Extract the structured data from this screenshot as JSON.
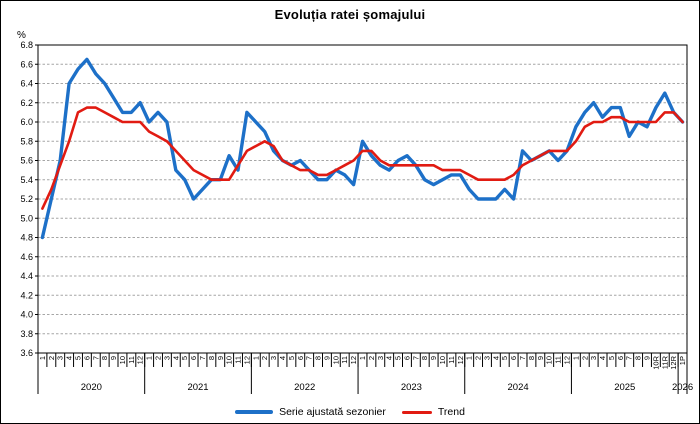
{
  "chart_data": {
    "type": "line",
    "title": "Evoluția ratei șomajului",
    "unit": "%",
    "ylim": [
      3.6,
      6.8
    ],
    "ytick_step": 0.2,
    "grid": "horizontal-dashed",
    "gridline_color": "#a6a6a6",
    "legend_position": "bottom-center",
    "years": [
      {
        "label": "2020",
        "months": [
          "1",
          "2",
          "3",
          "4",
          "5",
          "6",
          "7",
          "8",
          "9",
          "10",
          "11",
          "12"
        ]
      },
      {
        "label": "2021",
        "months": [
          "1",
          "2",
          "3",
          "4",
          "5",
          "6",
          "7",
          "8",
          "9",
          "10",
          "11",
          "12"
        ]
      },
      {
        "label": "2022",
        "months": [
          "1",
          "2",
          "3",
          "4",
          "5",
          "6",
          "7",
          "8",
          "9",
          "10",
          "11",
          "12"
        ]
      },
      {
        "label": "2023",
        "months": [
          "1",
          "2",
          "3",
          "4",
          "5",
          "6",
          "7",
          "8",
          "9",
          "10",
          "11",
          "12"
        ]
      },
      {
        "label": "2024",
        "months": [
          "1",
          "2",
          "3",
          "4",
          "5",
          "6",
          "7",
          "8",
          "9",
          "10",
          "11",
          "12"
        ]
      },
      {
        "label": "2025",
        "months": [
          "1",
          "2",
          "3",
          "4",
          "5",
          "6",
          "7",
          "8",
          "9",
          "10R",
          "11R",
          "12R"
        ]
      },
      {
        "label": "2026",
        "months": [
          "1P"
        ]
      }
    ],
    "series": [
      {
        "name": "Serie ajustată sezonier",
        "color": "#1d70c8",
        "width": 3.4,
        "values": [
          4.8,
          5.2,
          5.6,
          6.4,
          6.55,
          6.65,
          6.5,
          6.4,
          6.25,
          6.1,
          6.1,
          6.2,
          6.0,
          6.1,
          6.0,
          5.5,
          5.4,
          5.2,
          5.3,
          5.4,
          5.4,
          5.65,
          5.5,
          6.1,
          6.0,
          5.9,
          5.7,
          5.6,
          5.55,
          5.6,
          5.5,
          5.4,
          5.4,
          5.5,
          5.45,
          5.35,
          5.8,
          5.65,
          5.55,
          5.5,
          5.6,
          5.65,
          5.55,
          5.4,
          5.35,
          5.4,
          5.45,
          5.45,
          5.3,
          5.2,
          5.2,
          5.2,
          5.3,
          5.2,
          5.7,
          5.6,
          5.65,
          5.7,
          5.6,
          5.7,
          5.95,
          6.1,
          6.2,
          6.05,
          6.15,
          6.15,
          5.85,
          6.0,
          5.95,
          6.15,
          6.3,
          6.1,
          6.0
        ]
      },
      {
        "name": "Trend",
        "color": "#e11b12",
        "width": 2.6,
        "values": [
          5.1,
          5.3,
          5.55,
          5.8,
          6.1,
          6.15,
          6.15,
          6.1,
          6.05,
          6.0,
          6.0,
          6.0,
          5.9,
          5.85,
          5.8,
          5.7,
          5.6,
          5.5,
          5.45,
          5.4,
          5.4,
          5.4,
          5.55,
          5.7,
          5.75,
          5.8,
          5.75,
          5.6,
          5.55,
          5.5,
          5.5,
          5.45,
          5.45,
          5.5,
          5.55,
          5.6,
          5.7,
          5.7,
          5.6,
          5.55,
          5.55,
          5.55,
          5.55,
          5.55,
          5.55,
          5.5,
          5.5,
          5.5,
          5.45,
          5.4,
          5.4,
          5.4,
          5.4,
          5.45,
          5.55,
          5.6,
          5.65,
          5.7,
          5.7,
          5.7,
          5.8,
          5.95,
          6.0,
          6.0,
          6.05,
          6.05,
          6.0,
          6.0,
          6.0,
          6.0,
          6.1,
          6.1,
          6.0
        ]
      }
    ]
  }
}
